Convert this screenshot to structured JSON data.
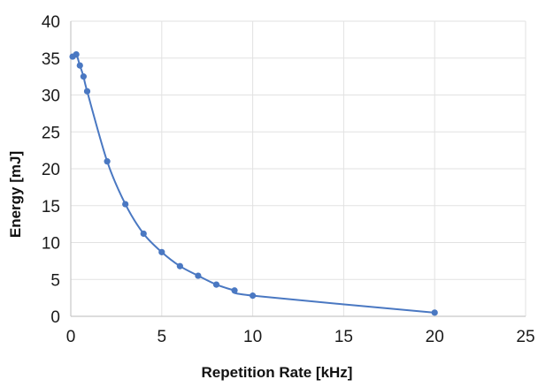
{
  "chart_data": {
    "type": "line",
    "title": "",
    "xlabel": "Repetition Rate [kHz]",
    "ylabel": "Energy [mJ]",
    "xlim": [
      0,
      25
    ],
    "ylim": [
      0,
      40
    ],
    "x_ticks": [
      0,
      5,
      10,
      15,
      20,
      25
    ],
    "y_ticks": [
      0,
      5,
      10,
      15,
      20,
      25,
      30,
      35,
      40
    ],
    "grid": true,
    "legend": "none",
    "series": [
      {
        "color": "#4a78c2",
        "marker": "circle",
        "x": [
          0.1,
          0.3,
          0.5,
          0.7,
          0.9,
          2,
          3,
          4,
          5,
          6,
          7,
          8,
          9,
          10,
          20
        ],
        "y": [
          35.2,
          35.5,
          34.0,
          32.5,
          30.5,
          21.0,
          15.2,
          11.2,
          8.7,
          6.8,
          5.5,
          4.3,
          3.5,
          2.8,
          0.5
        ]
      }
    ]
  }
}
